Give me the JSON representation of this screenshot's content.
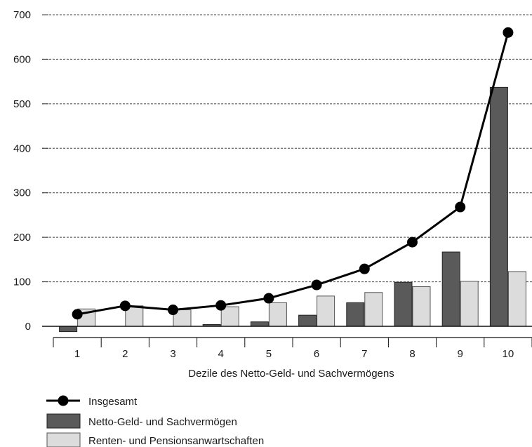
{
  "chart_data": {
    "type": "bar",
    "xlabel": "Dezile des Netto-Geld- und Sachvermögens",
    "ylabel": "",
    "ylim": [
      0,
      700
    ],
    "yticks": [
      0,
      100,
      200,
      300,
      400,
      500,
      600,
      700
    ],
    "grid": "horizontal dashed",
    "legend_position": "bottom-left",
    "categories": [
      "1",
      "2",
      "3",
      "4",
      "5",
      "6",
      "7",
      "8",
      "9",
      "10"
    ],
    "series": [
      {
        "name": "Netto-Geld- und Sachvermögen",
        "kind": "bar",
        "color": "#5a5a5a",
        "values": [
          -12,
          0,
          0,
          4,
          10,
          25,
          53,
          99,
          167,
          537
        ]
      },
      {
        "name": "Renten- und Pensionsanwartschaften",
        "kind": "bar",
        "color": "#dcdcdc",
        "values": [
          39,
          46,
          37,
          44,
          53,
          68,
          76,
          89,
          101,
          123
        ]
      },
      {
        "name": "Insgesamt",
        "kind": "line",
        "color": "#000000",
        "values": [
          27,
          46,
          37,
          47,
          63,
          93,
          129,
          189,
          268,
          660
        ]
      }
    ]
  }
}
